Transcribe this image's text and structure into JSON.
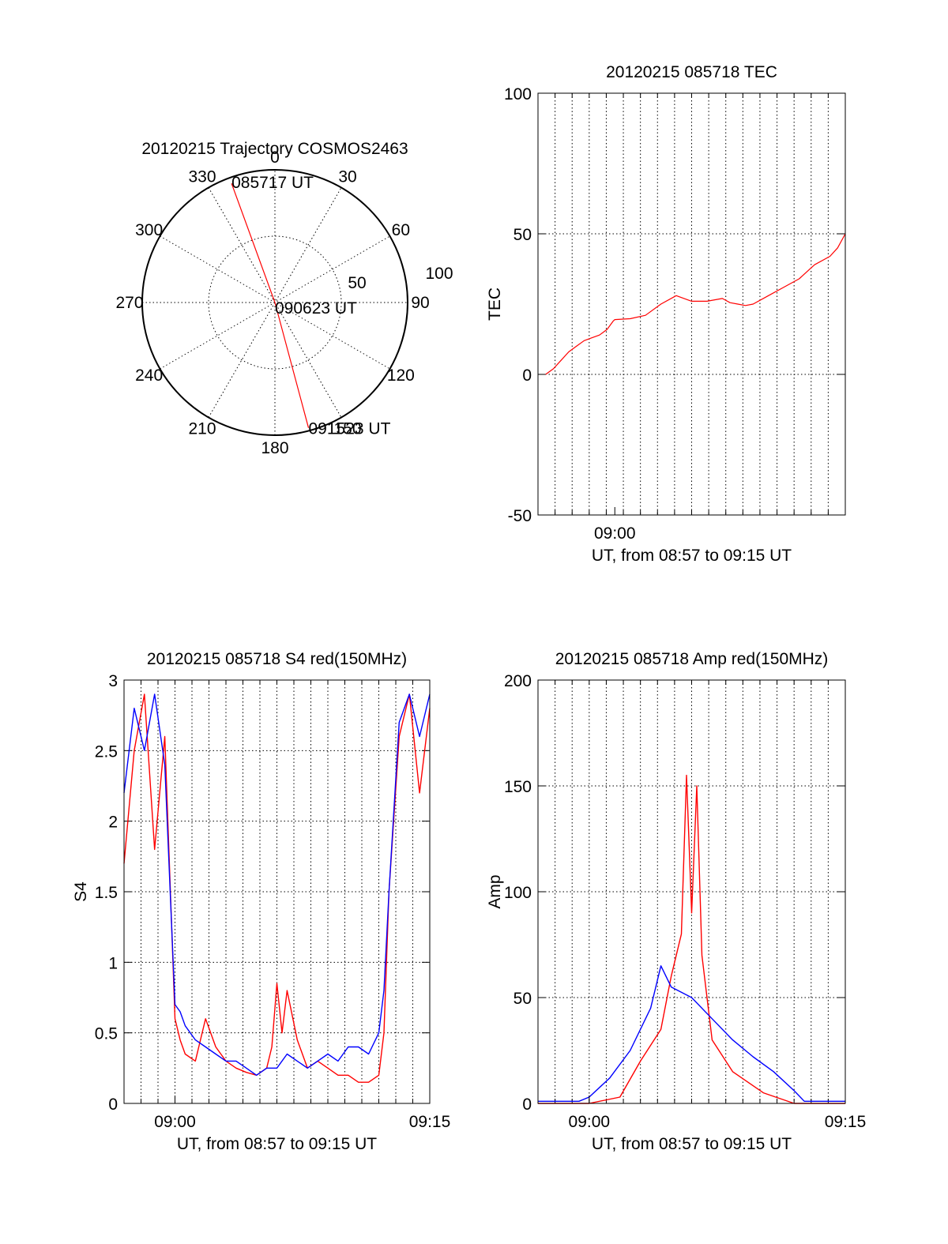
{
  "chart_data": [
    {
      "type": "polar",
      "title": "20120215 Trajectory COSMOS2463",
      "angle_labels": [
        "0",
        "30",
        "60",
        "90",
        "120",
        "150",
        "180",
        "210",
        "240",
        "270",
        "300",
        "330"
      ],
      "radius_labels": [
        "50",
        "100"
      ],
      "trajectory": {
        "color": "#ff0000",
        "points": [
          {
            "label": "085717 UT",
            "azimuth": 340,
            "zenith_distance": 86
          },
          {
            "label": "090623 UT",
            "azimuth": 0,
            "zenith_distance": 0
          },
          {
            "label": "091523 UT",
            "azimuth": 165,
            "zenith_distance": 88
          }
        ]
      }
    },
    {
      "type": "line",
      "title": "20120215 085718 TEC",
      "xlabel": "UT, from 08:57 to 09:15 UT",
      "ylabel": "TEC",
      "xlim": [
        8.95,
        9.15
      ],
      "ylim": [
        -50,
        100
      ],
      "yticks": [
        "-50",
        "0",
        "50",
        "100"
      ],
      "xticks": [
        {
          "value": 9.0,
          "label": "09:00"
        }
      ],
      "grid": true,
      "series": [
        {
          "color": "#ff0000",
          "x": [
            8.955,
            8.96,
            8.965,
            8.97,
            8.975,
            8.98,
            8.985,
            8.99,
            8.995,
            8.999,
            9.0,
            9.01,
            9.02,
            9.03,
            9.04,
            9.05,
            9.06,
            9.07,
            9.075,
            9.08,
            9.085,
            9.09,
            9.1,
            9.11,
            9.12,
            9.13,
            9.14,
            9.145,
            9.15
          ],
          "y": [
            0,
            2,
            5,
            8,
            10,
            12,
            13,
            14,
            16,
            19,
            19.5,
            19.8,
            21,
            25,
            28,
            26,
            26,
            27,
            25.5,
            25,
            24.5,
            25,
            28,
            31,
            34,
            39,
            42,
            45,
            50
          ]
        }
      ]
    },
    {
      "type": "line",
      "title": "20120215 085718 S4 red(150MHz)",
      "xlabel": "UT, from 08:57 to 09:15 UT",
      "ylabel": "S4",
      "xlim": [
        8.95,
        9.25
      ],
      "ylim": [
        0,
        3
      ],
      "yticks": [
        "0",
        "0.5",
        "1",
        "1.5",
        "2",
        "2.5",
        "3"
      ],
      "xticks": [
        {
          "value": 9.0,
          "label": "09:00"
        },
        {
          "value": 9.25,
          "label": "09:15"
        }
      ],
      "grid": true,
      "series": [
        {
          "color": "#ff0000",
          "x": [
            8.95,
            8.96,
            8.97,
            8.98,
            8.99,
            9.0,
            9.005,
            9.01,
            9.02,
            9.03,
            9.04,
            9.05,
            9.06,
            9.07,
            9.08,
            9.09,
            9.095,
            9.1,
            9.105,
            9.11,
            9.12,
            9.13,
            9.14,
            9.15,
            9.16,
            9.17,
            9.18,
            9.19,
            9.2,
            9.205,
            9.21,
            9.22,
            9.23,
            9.24,
            9.25
          ],
          "y": [
            1.7,
            2.5,
            2.9,
            1.8,
            2.6,
            0.6,
            0.45,
            0.35,
            0.3,
            0.6,
            0.4,
            0.3,
            0.25,
            0.22,
            0.2,
            0.25,
            0.4,
            0.85,
            0.5,
            0.8,
            0.45,
            0.25,
            0.3,
            0.25,
            0.2,
            0.2,
            0.15,
            0.15,
            0.2,
            0.5,
            1.5,
            2.6,
            2.9,
            2.2,
            2.8
          ]
        },
        {
          "color": "#0000ff",
          "x": [
            8.95,
            8.96,
            8.97,
            8.98,
            8.99,
            9.0,
            9.005,
            9.01,
            9.02,
            9.03,
            9.04,
            9.05,
            9.06,
            9.07,
            9.08,
            9.09,
            9.1,
            9.11,
            9.12,
            9.13,
            9.14,
            9.15,
            9.16,
            9.17,
            9.18,
            9.19,
            9.2,
            9.205,
            9.21,
            9.22,
            9.23,
            9.24,
            9.25
          ],
          "y": [
            2.2,
            2.8,
            2.5,
            2.9,
            2.4,
            0.7,
            0.65,
            0.55,
            0.45,
            0.4,
            0.35,
            0.3,
            0.3,
            0.25,
            0.2,
            0.25,
            0.25,
            0.35,
            0.3,
            0.25,
            0.3,
            0.35,
            0.3,
            0.4,
            0.4,
            0.35,
            0.5,
            0.8,
            1.5,
            2.7,
            2.9,
            2.6,
            2.9
          ]
        }
      ]
    },
    {
      "type": "line",
      "title": "20120215 085718 Amp red(150MHz)",
      "xlabel": "UT, from 08:57 to 09:15 UT",
      "ylabel": "Amp",
      "xlim": [
        8.95,
        9.25
      ],
      "ylim": [
        0,
        200
      ],
      "yticks": [
        "0",
        "50",
        "100",
        "150",
        "200"
      ],
      "xticks": [
        {
          "value": 9.0,
          "label": "09:00"
        },
        {
          "value": 9.25,
          "label": "09:15"
        }
      ],
      "grid": true,
      "series": [
        {
          "color": "#ff0000",
          "x": [
            8.95,
            8.99,
            9.0,
            9.03,
            9.05,
            9.07,
            9.08,
            9.09,
            9.095,
            9.1,
            9.105,
            9.11,
            9.12,
            9.14,
            9.17,
            9.2,
            9.25
          ],
          "y": [
            0,
            0,
            0,
            3,
            20,
            35,
            60,
            80,
            155,
            90,
            150,
            70,
            30,
            15,
            5,
            0,
            0
          ]
        },
        {
          "color": "#0000ff",
          "x": [
            8.95,
            8.99,
            9.0,
            9.02,
            9.04,
            9.06,
            9.07,
            9.08,
            9.1,
            9.12,
            9.14,
            9.16,
            9.18,
            9.2,
            9.21,
            9.25
          ],
          "y": [
            1,
            1,
            3,
            12,
            25,
            45,
            65,
            55,
            50,
            40,
            30,
            22,
            15,
            6,
            1,
            1
          ]
        }
      ]
    }
  ]
}
